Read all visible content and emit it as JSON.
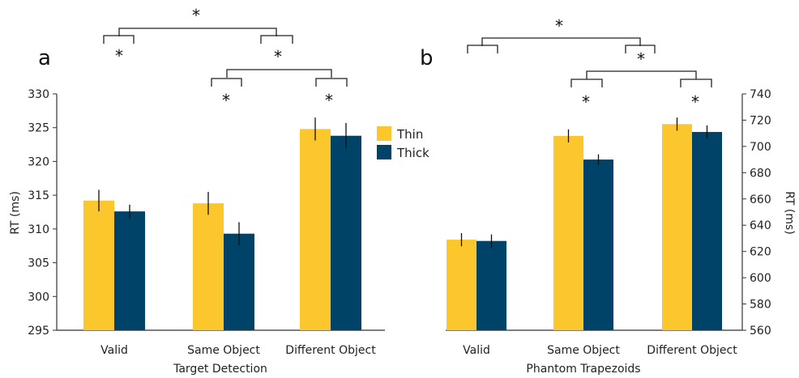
{
  "chart_data": [
    {
      "type": "bar",
      "panel_label": "a",
      "xlabel": "Target Detection",
      "ylabel": "RT (ms)",
      "y_axis_side": "left",
      "ylim": [
        295,
        330
      ],
      "yticks": [
        295,
        300,
        305,
        310,
        315,
        320,
        325,
        330
      ],
      "categories": [
        "Valid",
        "Same Object",
        "Different Object"
      ],
      "series": [
        {
          "name": "Thin",
          "color": "#FCC72C",
          "values": [
            314.2,
            313.8,
            324.8
          ],
          "errors": [
            1.6,
            1.7,
            1.7
          ]
        },
        {
          "name": "Thick",
          "color": "#004369",
          "values": [
            312.6,
            309.3,
            323.8
          ],
          "errors": [
            1.0,
            1.7,
            1.9
          ]
        }
      ],
      "significance": [
        "*",
        "*",
        "*",
        "*",
        "*"
      ],
      "legend": "top-right"
    },
    {
      "type": "bar",
      "panel_label": "b",
      "xlabel": "Phantom Trapezoids",
      "ylabel": "RT (ms)",
      "y_axis_side": "right",
      "ylim": [
        560,
        740
      ],
      "yticks": [
        560,
        580,
        600,
        620,
        640,
        660,
        680,
        700,
        720,
        740
      ],
      "categories": [
        "Valid",
        "Same Object",
        "Different Object"
      ],
      "series": [
        {
          "name": "Thin",
          "color": "#FCC72C",
          "values": [
            629,
            708,
            717
          ],
          "errors": [
            5,
            5,
            5
          ]
        },
        {
          "name": "Thick",
          "color": "#004369",
          "values": [
            628,
            690,
            711
          ],
          "errors": [
            5,
            4,
            5
          ]
        }
      ],
      "significance": [
        "*",
        "*",
        "*",
        "*",
        "*"
      ]
    }
  ]
}
